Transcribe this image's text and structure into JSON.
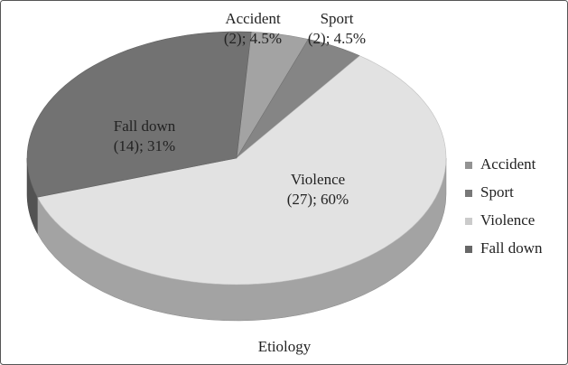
{
  "chart_data": {
    "type": "pie",
    "title": "Etiology",
    "categories": [
      "Accident",
      "Sport",
      "Violence",
      "Fall down"
    ],
    "values": [
      2,
      2,
      27,
      14
    ],
    "value_labels": [
      "(2); 4.5%",
      "(2); 4.5%",
      "(27); 60%",
      "(14); 31%"
    ],
    "colors": [
      "#a3a3a3",
      "#858585",
      "#e2e2e2",
      "#727272"
    ],
    "legend": "right"
  }
}
